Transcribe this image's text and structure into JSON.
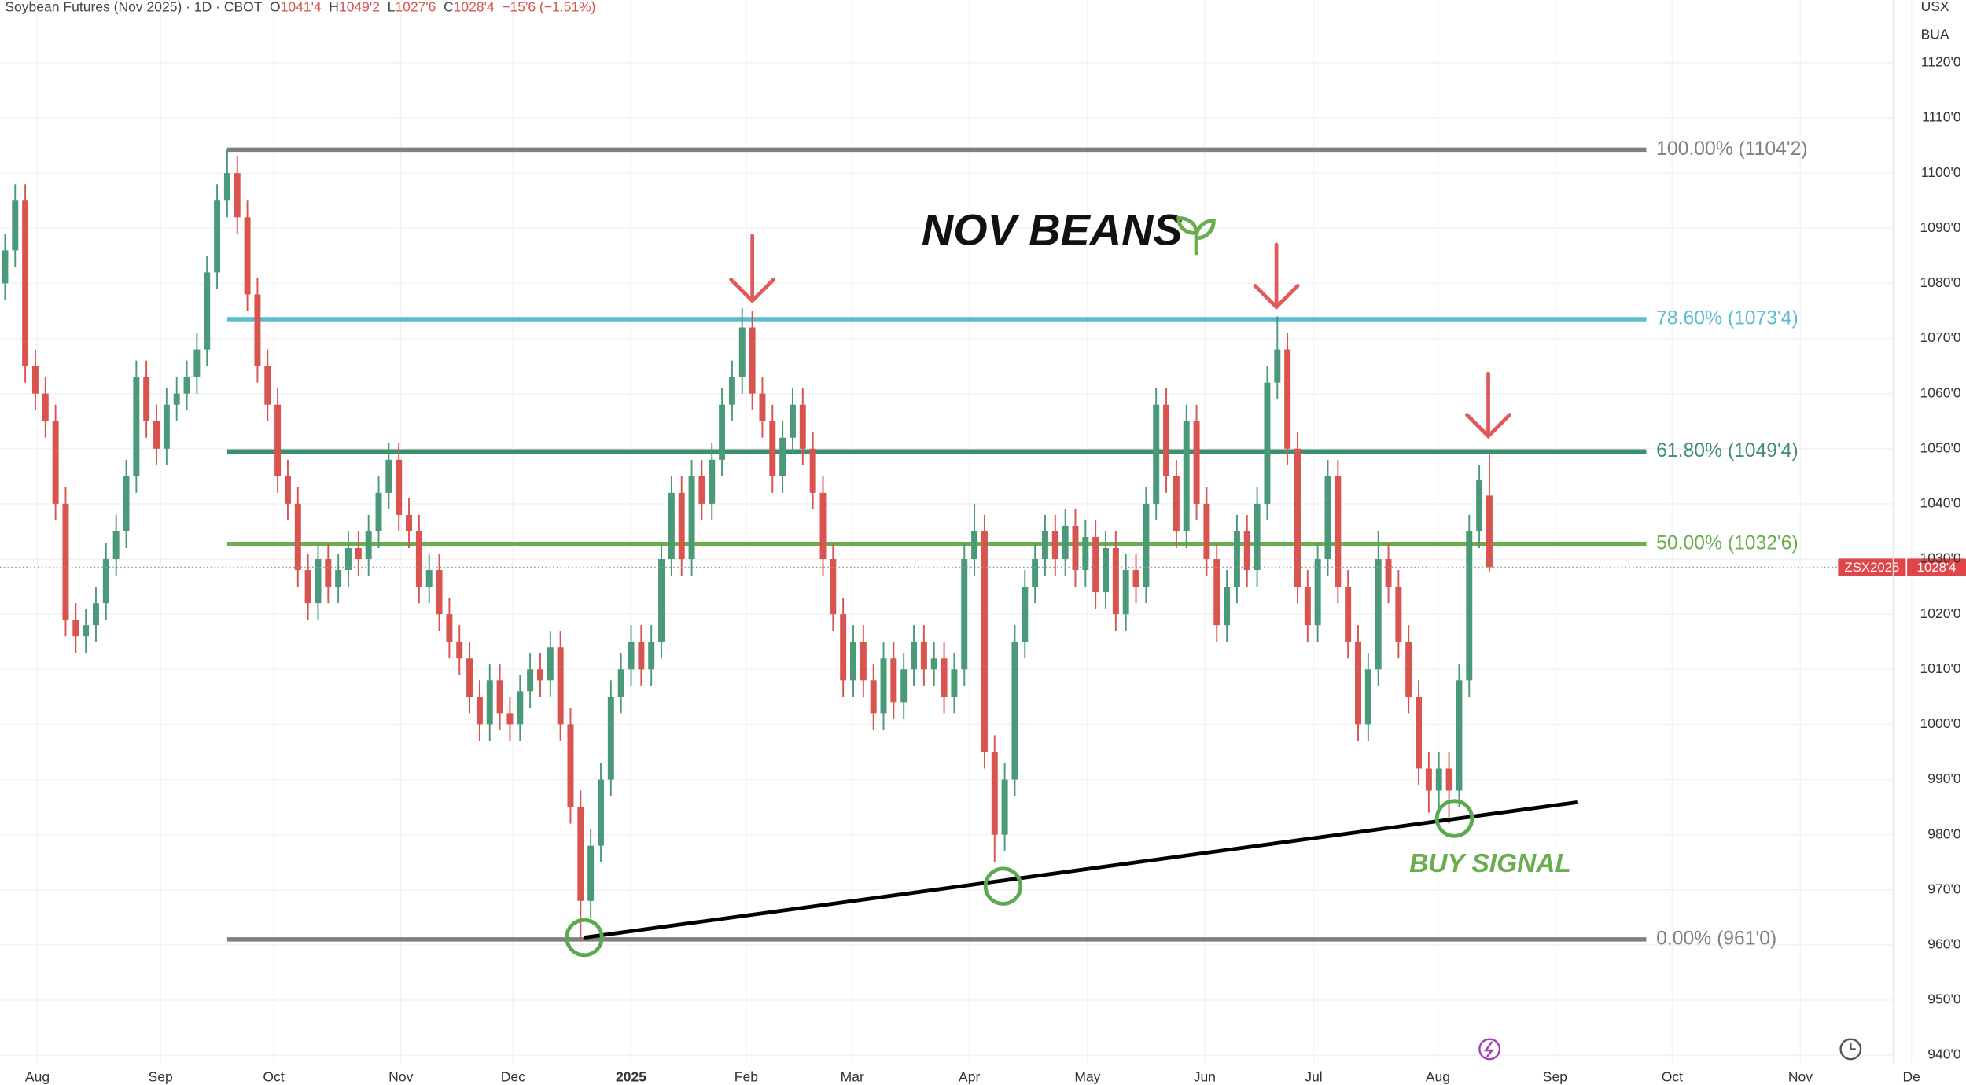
{
  "chart_data": {
    "type": "candlestick",
    "title": "NOV BEANS",
    "annotation": "BUY SIGNAL",
    "header": {
      "symbol": "Soybean Futures (Nov 2025) · 1D · CBOT",
      "fields": [
        {
          "key": "O",
          "value": "1041'4"
        },
        {
          "key": "H",
          "value": "1049'2"
        },
        {
          "key": "L",
          "value": "1027'6"
        },
        {
          "key": "C",
          "value": "1028'4"
        }
      ],
      "change": "−15'6 (−1.51%)"
    },
    "axis_labels": [
      "USX",
      "BUA"
    ],
    "up_color": "#4a9a7a",
    "down_color": "#d9534f",
    "grid": true,
    "price_tag": {
      "symbol": "ZSX2025",
      "label": "1028'4",
      "value": 1028.5,
      "color": "#e0454a"
    },
    "fib_levels": [
      {
        "value": 1104.25,
        "label": "100.00% (1104'2)",
        "color": "#808080"
      },
      {
        "value": 1073.5,
        "label": "78.60% (1073'4)",
        "color": "#5bbbd0"
      },
      {
        "value": 1049.5,
        "label": "61.80% (1049'4)",
        "color": "#3d8f6d"
      },
      {
        "value": 1032.75,
        "label": "50.00% (1032'6)",
        "color": "#6aad4f"
      },
      {
        "value": 961,
        "label": "0.00% (961'0)",
        "color": "#808080"
      }
    ],
    "xlim": [
      -0.5,
      194.2
    ],
    "ylim": [
      938.6,
      1131.4
    ],
    "xticks": [
      {
        "value": 3.2,
        "label": "Aug"
      },
      {
        "value": 15.4,
        "label": "Sep"
      },
      {
        "value": 26.6,
        "label": "Oct"
      },
      {
        "value": 39.2,
        "label": "Nov"
      },
      {
        "value": 50.3,
        "label": "Dec"
      },
      {
        "value": 62.0,
        "label": "2025"
      },
      {
        "value": 73.4,
        "label": "Feb"
      },
      {
        "value": 83.9,
        "label": "Mar"
      },
      {
        "value": 95.5,
        "label": "Apr"
      },
      {
        "value": 107.2,
        "label": "May"
      },
      {
        "value": 118.8,
        "label": "Jun"
      },
      {
        "value": 129.6,
        "label": "Jul"
      },
      {
        "value": 141.9,
        "label": "Aug"
      },
      {
        "value": 153.5,
        "label": "Sep"
      },
      {
        "value": 165.1,
        "label": "Oct"
      },
      {
        "value": 177.8,
        "label": "Nov"
      },
      {
        "value": 188.8,
        "label": "De"
      }
    ],
    "yticks": [
      {
        "value": 940,
        "label": "940'0"
      },
      {
        "value": 950,
        "label": "950'0"
      },
      {
        "value": 960,
        "label": "960'0"
      },
      {
        "value": 970,
        "label": "970'0"
      },
      {
        "value": 980,
        "label": "980'0"
      },
      {
        "value": 990,
        "label": "990'0"
      },
      {
        "value": 1000,
        "label": "1000'0"
      },
      {
        "value": 1010,
        "label": "1010'0"
      },
      {
        "value": 1020,
        "label": "1020'0"
      },
      {
        "value": 1030,
        "label": "1030'0"
      },
      {
        "value": 1040,
        "label": "1040'0"
      },
      {
        "value": 1050,
        "label": "1050'0"
      },
      {
        "value": 1060,
        "label": "1060'0"
      },
      {
        "value": 1070,
        "label": "1070'0"
      },
      {
        "value": 1080,
        "label": "1080'0"
      },
      {
        "value": 1090,
        "label": "1090'0"
      },
      {
        "value": 1100,
        "label": "1100'0"
      },
      {
        "value": 1110,
        "label": "1110'0"
      },
      {
        "value": 1120,
        "label": "1120'0"
      }
    ],
    "candles": [
      [
        1080,
        1089,
        1077,
        1086
      ],
      [
        1086,
        1098,
        1083,
        1095
      ],
      [
        1095,
        1098,
        1062,
        1065
      ],
      [
        1065,
        1068,
        1057,
        1060
      ],
      [
        1060,
        1063,
        1052,
        1055
      ],
      [
        1055,
        1058,
        1037,
        1040
      ],
      [
        1040,
        1043,
        1016,
        1019
      ],
      [
        1019,
        1022,
        1013,
        1016
      ],
      [
        1016,
        1021,
        1013,
        1018
      ],
      [
        1018,
        1025,
        1015,
        1022
      ],
      [
        1022,
        1033,
        1019,
        1030
      ],
      [
        1030,
        1038,
        1027,
        1035
      ],
      [
        1035,
        1048,
        1032,
        1045
      ],
      [
        1045,
        1066,
        1042,
        1063
      ],
      [
        1063,
        1066,
        1052,
        1055
      ],
      [
        1055,
        1058,
        1047,
        1050
      ],
      [
        1050,
        1061,
        1047,
        1058
      ],
      [
        1058,
        1063,
        1055,
        1060
      ],
      [
        1060,
        1066,
        1057,
        1063
      ],
      [
        1063,
        1071,
        1060,
        1068
      ],
      [
        1068,
        1085,
        1065,
        1082
      ],
      [
        1082,
        1098,
        1079,
        1095
      ],
      [
        1095,
        1104.25,
        1092,
        1100
      ],
      [
        1100,
        1103,
        1089,
        1092
      ],
      [
        1092,
        1095,
        1075,
        1078
      ],
      [
        1078,
        1081,
        1062,
        1065
      ],
      [
        1065,
        1068,
        1055,
        1058
      ],
      [
        1058,
        1061,
        1042,
        1045
      ],
      [
        1045,
        1048,
        1037,
        1040
      ],
      [
        1040,
        1043,
        1025,
        1028
      ],
      [
        1028,
        1031,
        1019,
        1022
      ],
      [
        1022,
        1033,
        1019,
        1030
      ],
      [
        1030,
        1033,
        1022,
        1025
      ],
      [
        1025,
        1031,
        1022,
        1028
      ],
      [
        1028,
        1035,
        1025,
        1032
      ],
      [
        1032,
        1035,
        1027,
        1030
      ],
      [
        1030,
        1038,
        1027,
        1035
      ],
      [
        1035,
        1045,
        1032,
        1042
      ],
      [
        1042,
        1051,
        1039,
        1048
      ],
      [
        1048,
        1051,
        1035,
        1038
      ],
      [
        1038,
        1041,
        1032,
        1035
      ],
      [
        1035,
        1038,
        1022,
        1025
      ],
      [
        1025,
        1031,
        1022,
        1028
      ],
      [
        1028,
        1031,
        1017,
        1020
      ],
      [
        1020,
        1023,
        1012,
        1015
      ],
      [
        1015,
        1018,
        1009,
        1012
      ],
      [
        1012,
        1015,
        1002,
        1005
      ],
      [
        1005,
        1008,
        997,
        1000
      ],
      [
        1000,
        1011,
        997,
        1008
      ],
      [
        1008,
        1011,
        999,
        1002
      ],
      [
        1002,
        1005,
        997,
        1000
      ],
      [
        1000,
        1009,
        997,
        1006
      ],
      [
        1006,
        1013,
        1003,
        1010
      ],
      [
        1010,
        1013,
        1005,
        1008
      ],
      [
        1008,
        1017,
        1005,
        1014
      ],
      [
        1014,
        1017,
        997,
        1000
      ],
      [
        1000,
        1003,
        982,
        985
      ],
      [
        985,
        988,
        961,
        968
      ],
      [
        968,
        981,
        965,
        978
      ],
      [
        978,
        993,
        975,
        990
      ],
      [
        990,
        1008,
        987,
        1005
      ],
      [
        1005,
        1013,
        1002,
        1010
      ],
      [
        1010,
        1018,
        1007,
        1015
      ],
      [
        1015,
        1018,
        1007,
        1010
      ],
      [
        1010,
        1018,
        1007,
        1015
      ],
      [
        1015,
        1033,
        1012,
        1030
      ],
      [
        1030,
        1045,
        1027,
        1042
      ],
      [
        1042,
        1045,
        1027,
        1030
      ],
      [
        1030,
        1048,
        1027,
        1045
      ],
      [
        1045,
        1048,
        1037,
        1040
      ],
      [
        1040,
        1051,
        1037,
        1048
      ],
      [
        1048,
        1061,
        1045,
        1058
      ],
      [
        1058,
        1066,
        1055,
        1063
      ],
      [
        1063,
        1075.5,
        1060,
        1072
      ],
      [
        1072,
        1075,
        1057,
        1060
      ],
      [
        1060,
        1063,
        1052,
        1055
      ],
      [
        1055,
        1058,
        1042,
        1045
      ],
      [
        1045,
        1055,
        1042,
        1052
      ],
      [
        1052,
        1061,
        1049,
        1058
      ],
      [
        1058,
        1061,
        1047,
        1050
      ],
      [
        1050,
        1053,
        1039,
        1042
      ],
      [
        1042,
        1045,
        1027,
        1030
      ],
      [
        1030,
        1033,
        1017,
        1020
      ],
      [
        1020,
        1023,
        1005,
        1008
      ],
      [
        1008,
        1018,
        1005,
        1015
      ],
      [
        1015,
        1018,
        1005,
        1008
      ],
      [
        1008,
        1011,
        999,
        1002
      ],
      [
        1002,
        1015,
        999,
        1012
      ],
      [
        1012,
        1015,
        1001,
        1004
      ],
      [
        1004,
        1013,
        1001,
        1010
      ],
      [
        1010,
        1018,
        1007,
        1015
      ],
      [
        1015,
        1018,
        1007,
        1010
      ],
      [
        1010,
        1015,
        1007,
        1012
      ],
      [
        1012,
        1015,
        1002,
        1005
      ],
      [
        1005,
        1013,
        1002,
        1010
      ],
      [
        1010,
        1033,
        1007,
        1030
      ],
      [
        1030,
        1040,
        1027,
        1035
      ],
      [
        1035,
        1038,
        992,
        995
      ],
      [
        995,
        998,
        975,
        980
      ],
      [
        980,
        993,
        977,
        990
      ],
      [
        990,
        1018,
        987,
        1015
      ],
      [
        1015,
        1028,
        1012,
        1025
      ],
      [
        1025,
        1033,
        1022,
        1030
      ],
      [
        1030,
        1038,
        1027,
        1035
      ],
      [
        1035,
        1038,
        1027,
        1030
      ],
      [
        1030,
        1039,
        1027,
        1036
      ],
      [
        1036,
        1039,
        1025,
        1028
      ],
      [
        1028,
        1037,
        1025,
        1034
      ],
      [
        1034,
        1037,
        1021,
        1024
      ],
      [
        1024,
        1035,
        1021,
        1032
      ],
      [
        1032,
        1035,
        1017,
        1020
      ],
      [
        1020,
        1031,
        1017,
        1028
      ],
      [
        1028,
        1031,
        1022,
        1025
      ],
      [
        1025,
        1043,
        1022,
        1040
      ],
      [
        1040,
        1061,
        1037,
        1058
      ],
      [
        1058,
        1061,
        1042,
        1045
      ],
      [
        1045,
        1048,
        1032,
        1035
      ],
      [
        1035,
        1058,
        1032,
        1055
      ],
      [
        1055,
        1058,
        1037,
        1040
      ],
      [
        1040,
        1043,
        1027,
        1030
      ],
      [
        1030,
        1033,
        1015,
        1018
      ],
      [
        1018,
        1028,
        1015,
        1025
      ],
      [
        1025,
        1038,
        1022,
        1035
      ],
      [
        1035,
        1038,
        1025,
        1028
      ],
      [
        1028,
        1043,
        1025,
        1040
      ],
      [
        1040,
        1065,
        1037,
        1062
      ],
      [
        1062,
        1074,
        1059,
        1068
      ],
      [
        1068,
        1071,
        1047,
        1050
      ],
      [
        1050,
        1053,
        1022,
        1025
      ],
      [
        1025,
        1028,
        1015,
        1018
      ],
      [
        1018,
        1033,
        1015,
        1030
      ],
      [
        1030,
        1048,
        1027,
        1045
      ],
      [
        1045,
        1048,
        1022,
        1025
      ],
      [
        1025,
        1028,
        1012,
        1015
      ],
      [
        1015,
        1018,
        997,
        1000
      ],
      [
        1000,
        1013,
        997,
        1010
      ],
      [
        1010,
        1035,
        1007,
        1030
      ],
      [
        1030,
        1033,
        1022,
        1025
      ],
      [
        1025,
        1028,
        1012,
        1015
      ],
      [
        1015,
        1018,
        1002,
        1005
      ],
      [
        1005,
        1008,
        989,
        992
      ],
      [
        992,
        995,
        984,
        988
      ],
      [
        988,
        995,
        985,
        992
      ],
      [
        992,
        995,
        982,
        988
      ],
      [
        988,
        1011,
        985,
        1008
      ],
      [
        1008,
        1038,
        1005,
        1035
      ],
      [
        1035,
        1047,
        1032,
        1044.25
      ],
      [
        1041.5,
        1049.25,
        1027.75,
        1028.5
      ]
    ]
  }
}
